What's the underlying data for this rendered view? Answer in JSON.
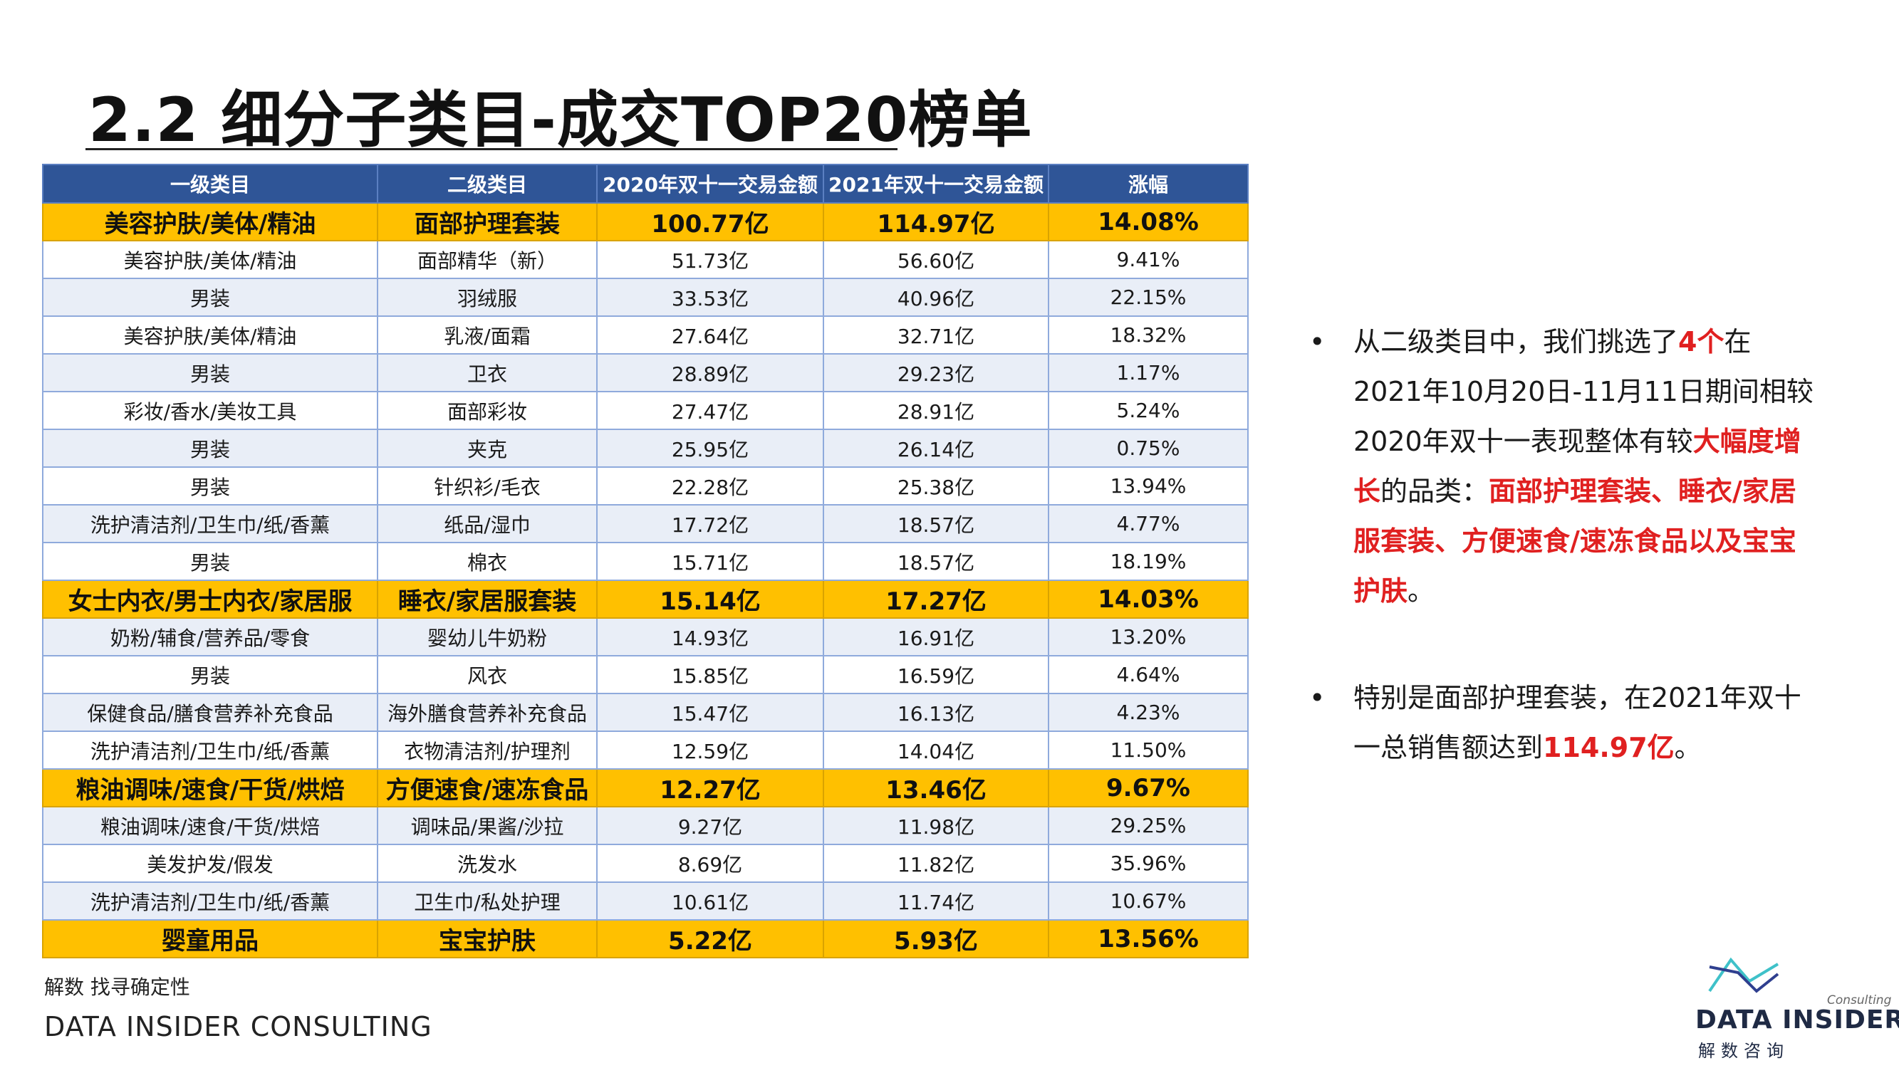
{
  "title": "2.2 细分子类目-成交TOP20榜单",
  "table": {
    "headers": [
      "一级类目",
      "二级类目",
      "2020年双十一交易金额",
      "2021年双十一交易金额",
      "涨幅"
    ],
    "rows": [
      {
        "c1": "美容护肤/美体/精油",
        "c2": "面部护理套装",
        "c3": "100.77亿",
        "c4": "114.97亿",
        "c5": "14.08%",
        "highlight": true
      },
      {
        "c1": "美容护肤/美体/精油",
        "c2": "面部精华（新）",
        "c3": "51.73亿",
        "c4": "56.60亿",
        "c5": "9.41%",
        "highlight": false
      },
      {
        "c1": "男装",
        "c2": "羽绒服",
        "c3": "33.53亿",
        "c4": "40.96亿",
        "c5": "22.15%",
        "highlight": false
      },
      {
        "c1": "美容护肤/美体/精油",
        "c2": "乳液/面霜",
        "c3": "27.64亿",
        "c4": "32.71亿",
        "c5": "18.32%",
        "highlight": false
      },
      {
        "c1": "男装",
        "c2": "卫衣",
        "c3": "28.89亿",
        "c4": "29.23亿",
        "c5": "1.17%",
        "highlight": false
      },
      {
        "c1": "彩妆/香水/美妆工具",
        "c2": "面部彩妆",
        "c3": "27.47亿",
        "c4": "28.91亿",
        "c5": "5.24%",
        "highlight": false
      },
      {
        "c1": "男装",
        "c2": "夹克",
        "c3": "25.95亿",
        "c4": "26.14亿",
        "c5": "0.75%",
        "highlight": false
      },
      {
        "c1": "男装",
        "c2": "针织衫/毛衣",
        "c3": "22.28亿",
        "c4": "25.38亿",
        "c5": "13.94%",
        "highlight": false
      },
      {
        "c1": "洗护清洁剂/卫生巾/纸/香薰",
        "c2": "纸品/湿巾",
        "c3": "17.72亿",
        "c4": "18.57亿",
        "c5": "4.77%",
        "highlight": false
      },
      {
        "c1": "男装",
        "c2": "棉衣",
        "c3": "15.71亿",
        "c4": "18.57亿",
        "c5": "18.19%",
        "highlight": false
      },
      {
        "c1": "女士内衣/男士内衣/家居服",
        "c2": "睡衣/家居服套装",
        "c3": "15.14亿",
        "c4": "17.27亿",
        "c5": "14.03%",
        "highlight": true
      },
      {
        "c1": "奶粉/辅食/营养品/零食",
        "c2": "婴幼儿牛奶粉",
        "c3": "14.93亿",
        "c4": "16.91亿",
        "c5": "13.20%",
        "highlight": false
      },
      {
        "c1": "男装",
        "c2": "风衣",
        "c3": "15.85亿",
        "c4": "16.59亿",
        "c5": "4.64%",
        "highlight": false
      },
      {
        "c1": "保健食品/膳食营养补充食品",
        "c2": "海外膳食营养补充食品",
        "c3": "15.47亿",
        "c4": "16.13亿",
        "c5": "4.23%",
        "highlight": false
      },
      {
        "c1": "洗护清洁剂/卫生巾/纸/香薰",
        "c2": "衣物清洁剂/护理剂",
        "c3": "12.59亿",
        "c4": "14.04亿",
        "c5": "11.50%",
        "highlight": false
      },
      {
        "c1": "粮油调味/速食/干货/烘焙",
        "c2": "方便速食/速冻食品",
        "c3": "12.27亿",
        "c4": "13.46亿",
        "c5": "9.67%",
        "highlight": true
      },
      {
        "c1": "粮油调味/速食/干货/烘焙",
        "c2": "调味品/果酱/沙拉",
        "c3": "9.27亿",
        "c4": "11.98亿",
        "c5": "29.25%",
        "highlight": false
      },
      {
        "c1": "美发护发/假发",
        "c2": "洗发水",
        "c3": "8.69亿",
        "c4": "11.82亿",
        "c5": "35.96%",
        "highlight": false
      },
      {
        "c1": "洗护清洁剂/卫生巾/纸/香薰",
        "c2": "卫生巾/私处护理",
        "c3": "10.61亿",
        "c4": "11.74亿",
        "c5": "10.67%",
        "highlight": false
      },
      {
        "c1": "婴童用品",
        "c2": "宝宝护肤",
        "c3": "5.22亿",
        "c4": "5.93亿",
        "c5": "13.56%",
        "highlight": true
      }
    ]
  },
  "bullets": [
    {
      "parts": [
        {
          "text": "从二级类目中，我们挑选了",
          "red": false
        },
        {
          "text": "4个",
          "red": true
        },
        {
          "text": "在2021年10月20日-11月11日期间相较2020年双十一表现整体有较",
          "red": false
        },
        {
          "text": "大幅度增长",
          "red": true
        },
        {
          "text": "的品类：",
          "red": false
        },
        {
          "text": "面部护理套装、睡衣/家居服套装、方便速食/速冻食品以及宝宝护肤",
          "red": true
        },
        {
          "text": "。",
          "red": false
        }
      ]
    },
    {
      "parts": [
        {
          "text": "特别是面部护理套装，在2021年双十一总销售额达到",
          "red": false
        },
        {
          "text": "114.97亿",
          "red": true
        },
        {
          "text": "。",
          "red": false
        }
      ]
    }
  ],
  "footer": {
    "line1": "解数 找寻确定性",
    "line2": "DATA INSIDER CONSULTING"
  },
  "logo": {
    "brand": "DATA INSIDER",
    "tagline": "Consulting",
    "cn": "解数咨询",
    "color_a": "#3fc1c9",
    "color_b": "#2f3f8f"
  },
  "colors": {
    "header_bg": "#2f5597",
    "highlight_bg": "#ffc000",
    "stripe_bg": "#e9eef7",
    "accent_red": "#e02020"
  }
}
